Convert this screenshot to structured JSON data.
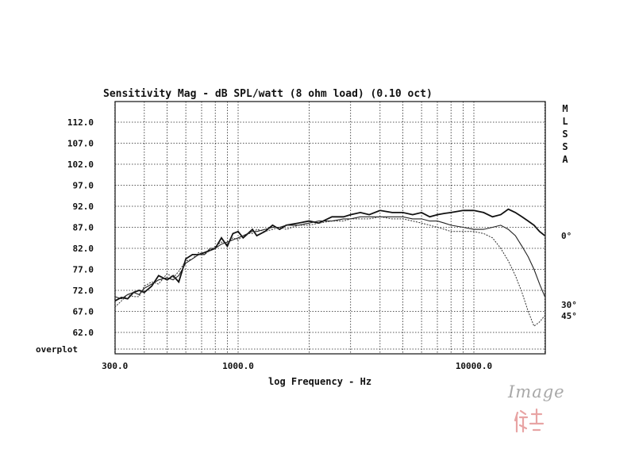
{
  "chart_data": {
    "type": "line",
    "title": "Sensitivity Mag - dB SPL/watt (8 ohm load) (0.10 oct)",
    "xlabel": "log Frequency - Hz",
    "ylabel": "",
    "x_scale": "log",
    "xlim": [
      300,
      20000
    ],
    "ylim": [
      62,
      112
    ],
    "x_ticks": [
      {
        "value": 300,
        "label": "300.0"
      },
      {
        "value": 1000,
        "label": "1000.0"
      },
      {
        "value": 10000,
        "label": "10000.0"
      }
    ],
    "y_ticks": [
      {
        "value": 112,
        "label": "112.0"
      },
      {
        "value": 107,
        "label": "107.0"
      },
      {
        "value": 102,
        "label": "102.0"
      },
      {
        "value": 97,
        "label": "97.0"
      },
      {
        "value": 92,
        "label": "92.0"
      },
      {
        "value": 87,
        "label": "87.0"
      },
      {
        "value": 82,
        "label": "82.0"
      },
      {
        "value": 77,
        "label": "77.0"
      },
      {
        "value": 72,
        "label": "72.0"
      },
      {
        "value": 67,
        "label": "67.0"
      },
      {
        "value": 62,
        "label": "62.0"
      }
    ],
    "bottom_left_label": "overplot",
    "side_label_letters": [
      "M",
      "L",
      "S",
      "S",
      "A"
    ],
    "grid": true,
    "series": [
      {
        "name": "0°",
        "style": "solid-bold",
        "x": [
          300,
          320,
          340,
          360,
          380,
          400,
          430,
          460,
          500,
          530,
          560,
          600,
          640,
          680,
          720,
          760,
          800,
          850,
          900,
          950,
          1000,
          1050,
          1100,
          1150,
          1200,
          1300,
          1400,
          1500,
          1600,
          1800,
          2000,
          2200,
          2500,
          2800,
          3000,
          3300,
          3600,
          4000,
          4500,
          5000,
          5500,
          6000,
          6500,
          7000,
          7500,
          8000,
          9000,
          10000,
          11000,
          12000,
          13000,
          14000,
          15000,
          16000,
          17000,
          18000,
          19000,
          20000
        ],
        "y": [
          69.5,
          70.3,
          70.0,
          71.5,
          72.0,
          71.5,
          73.0,
          75.5,
          74.5,
          75.5,
          74.0,
          79.5,
          80.5,
          80.5,
          81.0,
          81.5,
          82.0,
          84.5,
          82.5,
          85.5,
          86.0,
          84.5,
          85.5,
          86.5,
          85.0,
          86.0,
          87.5,
          86.5,
          87.5,
          88.0,
          88.5,
          88.0,
          89.5,
          89.5,
          90.0,
          90.5,
          90.0,
          91.0,
          90.5,
          90.5,
          90.0,
          90.5,
          89.5,
          90.0,
          90.3,
          90.5,
          91.0,
          91.0,
          90.5,
          89.5,
          90.0,
          91.3,
          90.5,
          89.5,
          88.5,
          87.5,
          86.0,
          85.0
        ]
      },
      {
        "name": "30°",
        "style": "thin",
        "x": [
          300,
          320,
          340,
          360,
          380,
          400,
          430,
          460,
          500,
          530,
          560,
          600,
          640,
          680,
          720,
          760,
          800,
          850,
          900,
          950,
          1000,
          1050,
          1100,
          1150,
          1200,
          1300,
          1400,
          1500,
          1600,
          1800,
          2000,
          2200,
          2500,
          2800,
          3000,
          3300,
          3600,
          4000,
          4500,
          5000,
          5500,
          6000,
          6500,
          7000,
          7500,
          8000,
          9000,
          10000,
          11000,
          12000,
          13000,
          14000,
          15000,
          16000,
          17000,
          18000,
          19000,
          20000
        ],
        "y": [
          70.5,
          70.0,
          71.0,
          71.5,
          71.0,
          72.5,
          73.5,
          74.5,
          75.0,
          74.5,
          75.5,
          78.5,
          79.5,
          80.5,
          80.5,
          82.0,
          82.0,
          83.0,
          83.5,
          84.0,
          84.5,
          85.0,
          85.5,
          86.0,
          86.0,
          86.5,
          87.0,
          87.0,
          87.5,
          87.5,
          88.0,
          88.5,
          88.5,
          89.0,
          89.0,
          89.5,
          89.5,
          89.5,
          89.5,
          89.5,
          89.0,
          89.0,
          88.5,
          88.5,
          88.0,
          87.5,
          87.0,
          86.5,
          86.5,
          87.0,
          87.5,
          86.5,
          85.0,
          82.5,
          80.0,
          77.0,
          73.5,
          70.5
        ]
      },
      {
        "name": "45°",
        "style": "dotted",
        "x": [
          300,
          320,
          340,
          360,
          380,
          400,
          430,
          460,
          500,
          530,
          560,
          600,
          640,
          680,
          720,
          760,
          800,
          850,
          900,
          950,
          1000,
          1050,
          1100,
          1150,
          1200,
          1300,
          1400,
          1500,
          1600,
          1800,
          2000,
          2200,
          2500,
          2800,
          3000,
          3300,
          3600,
          4000,
          4500,
          5000,
          5500,
          6000,
          6500,
          7000,
          7500,
          8000,
          9000,
          10000,
          11000,
          12000,
          13000,
          14000,
          15000,
          16000,
          17000,
          18000,
          19000,
          20000
        ],
        "y": [
          68.0,
          69.5,
          71.0,
          70.5,
          70.5,
          73.0,
          74.0,
          73.5,
          76.0,
          75.0,
          76.5,
          79.0,
          79.5,
          81.0,
          80.5,
          81.5,
          82.5,
          83.5,
          83.0,
          84.5,
          84.0,
          85.0,
          85.5,
          85.5,
          86.5,
          86.0,
          86.5,
          87.0,
          86.5,
          87.5,
          87.5,
          88.0,
          88.5,
          88.5,
          89.0,
          89.0,
          89.0,
          89.5,
          89.0,
          89.0,
          88.5,
          88.0,
          87.5,
          87.0,
          86.5,
          86.0,
          86.0,
          86.0,
          85.5,
          84.5,
          82.0,
          79.0,
          75.5,
          71.5,
          67.0,
          63.5,
          64.5,
          66.0
        ]
      }
    ]
  },
  "watermark": {
    "text": "Image",
    "seal_color": "#e8a4a4"
  }
}
